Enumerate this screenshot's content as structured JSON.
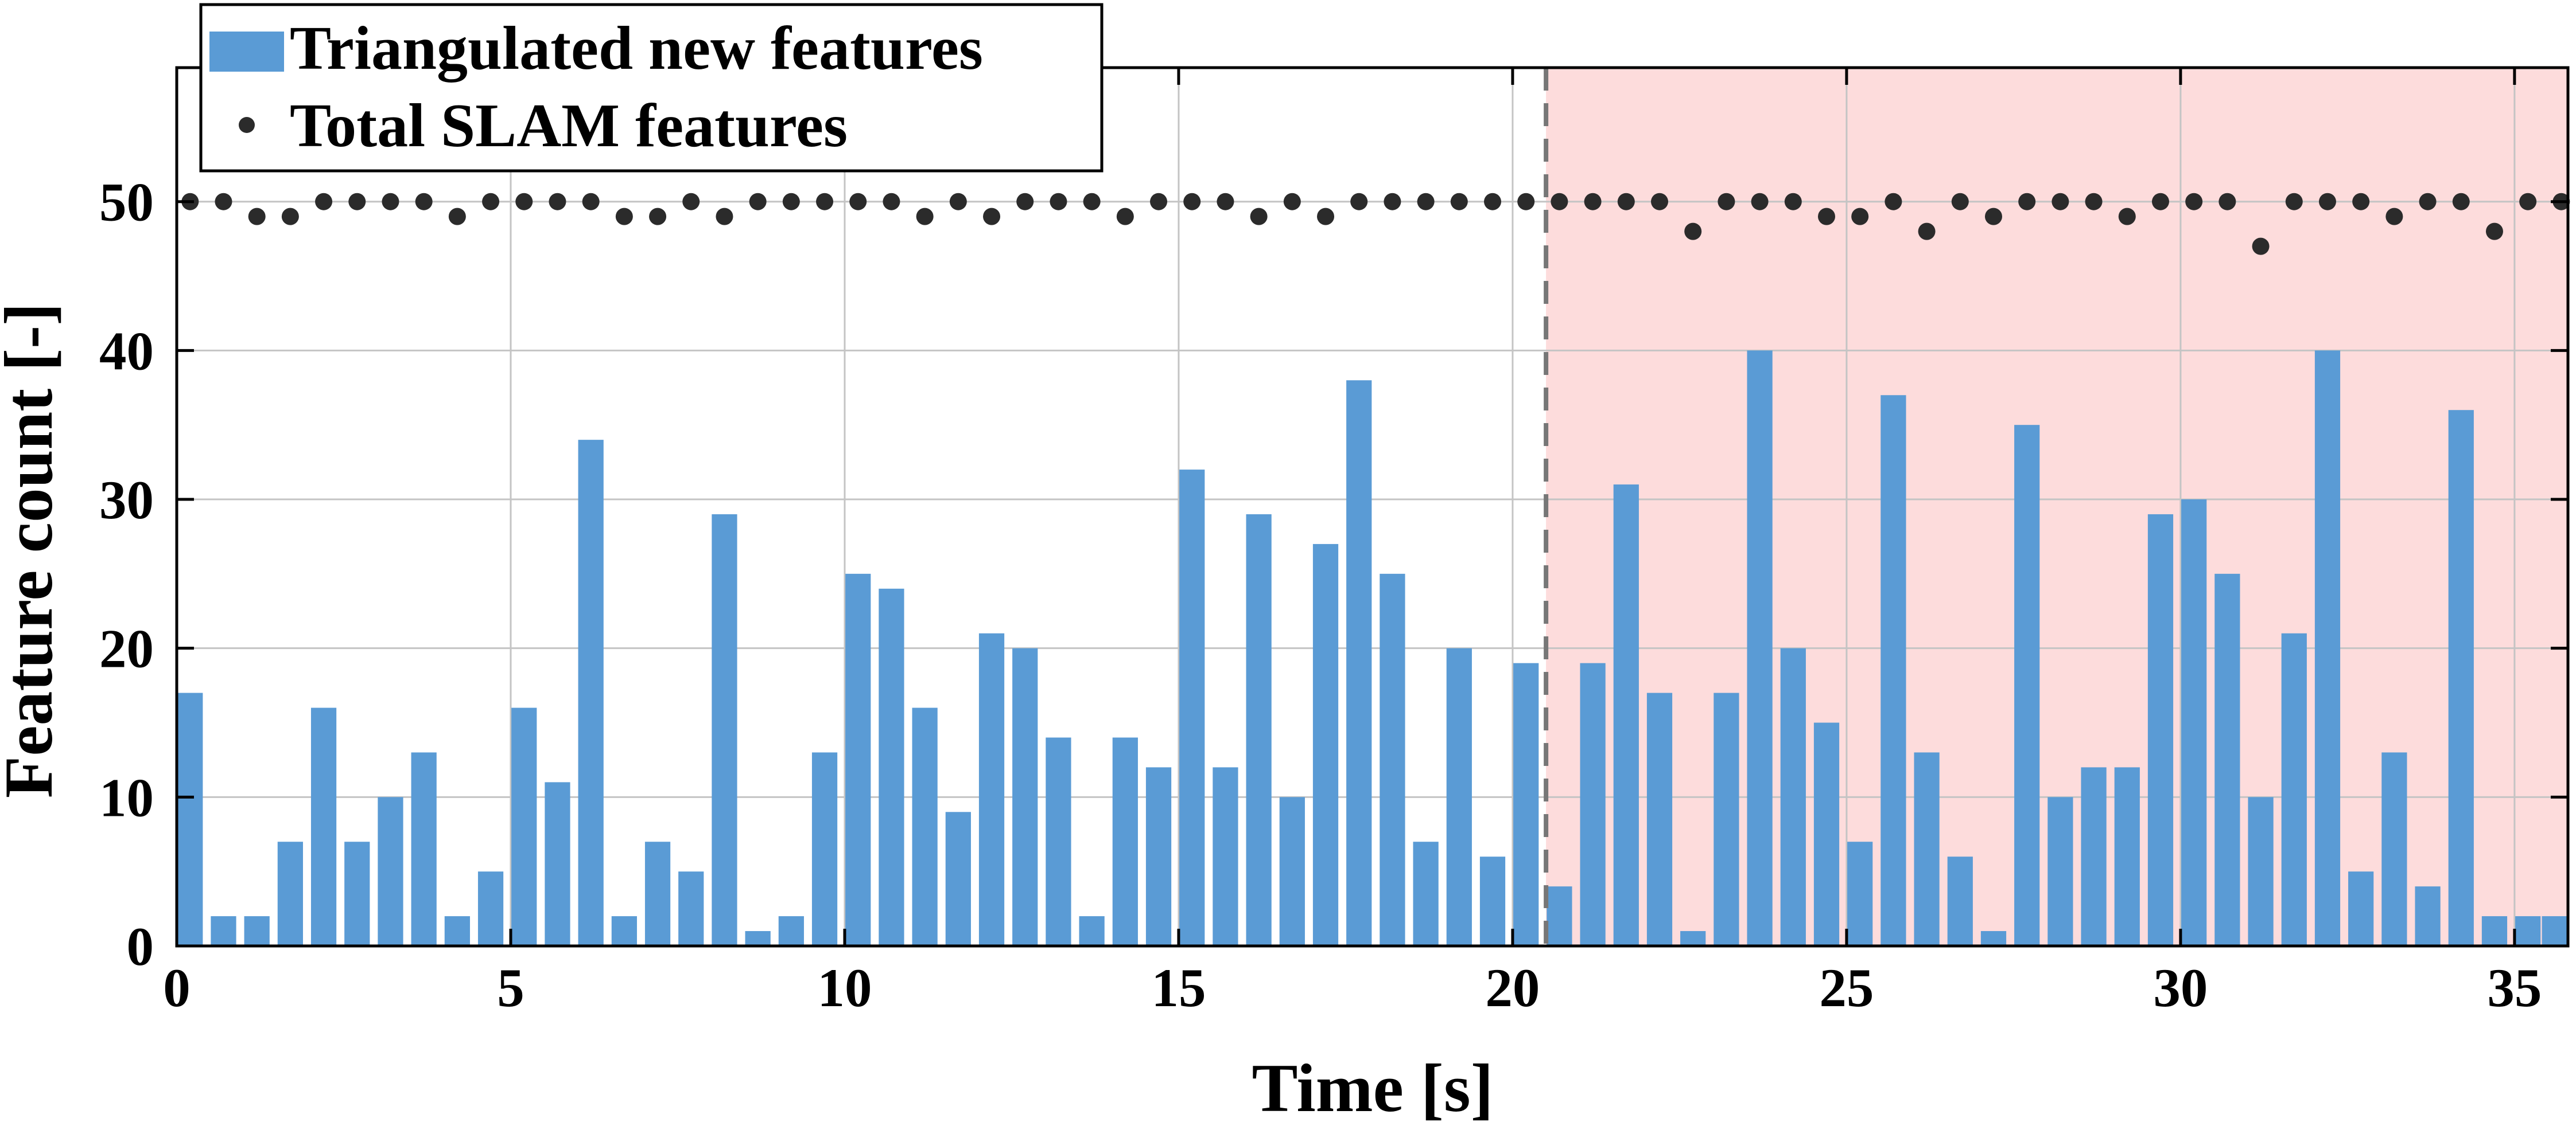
{
  "chart_data": {
    "type": "bar",
    "xlabel": "Time [s]",
    "ylabel": "Feature count [-]",
    "xlim": [
      0,
      35.8
    ],
    "ylim": [
      0,
      59
    ],
    "xticks": [
      0,
      5,
      10,
      15,
      20,
      25,
      30,
      35
    ],
    "yticks": [
      0,
      10,
      20,
      30,
      40,
      50
    ],
    "grid": true,
    "legend_position": "top-left",
    "colors": {
      "bars": "#5a9bd5",
      "dots": "#2b2b2b",
      "shade": "#fddcdc",
      "divider": "#777777",
      "grid": "#c4c4c4"
    },
    "shaded_region": {
      "x_start": 20.5,
      "x_end": 35.8
    },
    "divider_x": 20.5,
    "series": [
      {
        "name": "Triangulated new features",
        "type": "bar",
        "x": [
          0.2,
          0.7,
          1.2,
          1.7,
          2.2,
          2.7,
          3.2,
          3.7,
          4.2,
          4.7,
          5.2,
          5.7,
          6.2,
          6.7,
          7.2,
          7.7,
          8.2,
          8.7,
          9.2,
          9.7,
          10.2,
          10.7,
          11.2,
          11.7,
          12.2,
          12.7,
          13.2,
          13.7,
          14.2,
          14.7,
          15.2,
          15.7,
          16.2,
          16.7,
          17.2,
          17.7,
          18.2,
          18.7,
          19.2,
          19.7,
          20.2,
          20.7,
          21.2,
          21.7,
          22.2,
          22.7,
          23.2,
          23.7,
          24.2,
          24.7,
          25.2,
          25.7,
          26.2,
          26.7,
          27.2,
          27.7,
          28.2,
          28.7,
          29.2,
          29.7,
          30.2,
          30.7,
          31.2,
          31.7,
          32.2,
          32.7,
          33.2,
          33.7,
          34.2,
          34.7,
          35.2,
          35.6
        ],
        "values": [
          17,
          2,
          2,
          7,
          16,
          7,
          10,
          13,
          2,
          5,
          16,
          11,
          34,
          2,
          7,
          5,
          29,
          1,
          2,
          13,
          25,
          24,
          16,
          9,
          21,
          20,
          14,
          2,
          14,
          12,
          32,
          12,
          29,
          10,
          27,
          38,
          25,
          7,
          20,
          6,
          19,
          4,
          19,
          31,
          17,
          1,
          17,
          40,
          20,
          15,
          7,
          37,
          13,
          6,
          1,
          35,
          10,
          12,
          12,
          29,
          30,
          25,
          10,
          21,
          40,
          5,
          13,
          4,
          36,
          2,
          2,
          2
        ]
      },
      {
        "name": "Total SLAM features",
        "type": "scatter",
        "x": [
          0.2,
          0.7,
          1.2,
          1.7,
          2.2,
          2.7,
          3.2,
          3.7,
          4.2,
          4.7,
          5.2,
          5.7,
          6.2,
          6.7,
          7.2,
          7.7,
          8.2,
          8.7,
          9.2,
          9.7,
          10.2,
          10.7,
          11.2,
          11.7,
          12.2,
          12.7,
          13.2,
          13.7,
          14.2,
          14.7,
          15.2,
          15.7,
          16.2,
          16.7,
          17.2,
          17.7,
          18.2,
          18.7,
          19.2,
          19.7,
          20.2,
          20.7,
          21.2,
          21.7,
          22.2,
          22.7,
          23.2,
          23.7,
          24.2,
          24.7,
          25.2,
          25.7,
          26.2,
          26.7,
          27.2,
          27.7,
          28.2,
          28.7,
          29.2,
          29.7,
          30.2,
          30.7,
          31.2,
          31.7,
          32.2,
          32.7,
          33.2,
          33.7,
          34.2,
          34.7,
          35.2,
          35.7
        ],
        "values": [
          50,
          50,
          49,
          49,
          50,
          50,
          50,
          50,
          49,
          50,
          50,
          50,
          50,
          49,
          49,
          50,
          49,
          50,
          50,
          50,
          50,
          50,
          49,
          50,
          49,
          50,
          50,
          50,
          49,
          50,
          50,
          50,
          49,
          50,
          49,
          50,
          50,
          50,
          50,
          50,
          50,
          50,
          50,
          50,
          50,
          48,
          50,
          50,
          50,
          49,
          49,
          50,
          48,
          50,
          49,
          50,
          50,
          50,
          49,
          50,
          50,
          50,
          47,
          50,
          50,
          50,
          49,
          50,
          50,
          48,
          50,
          50
        ]
      }
    ]
  }
}
